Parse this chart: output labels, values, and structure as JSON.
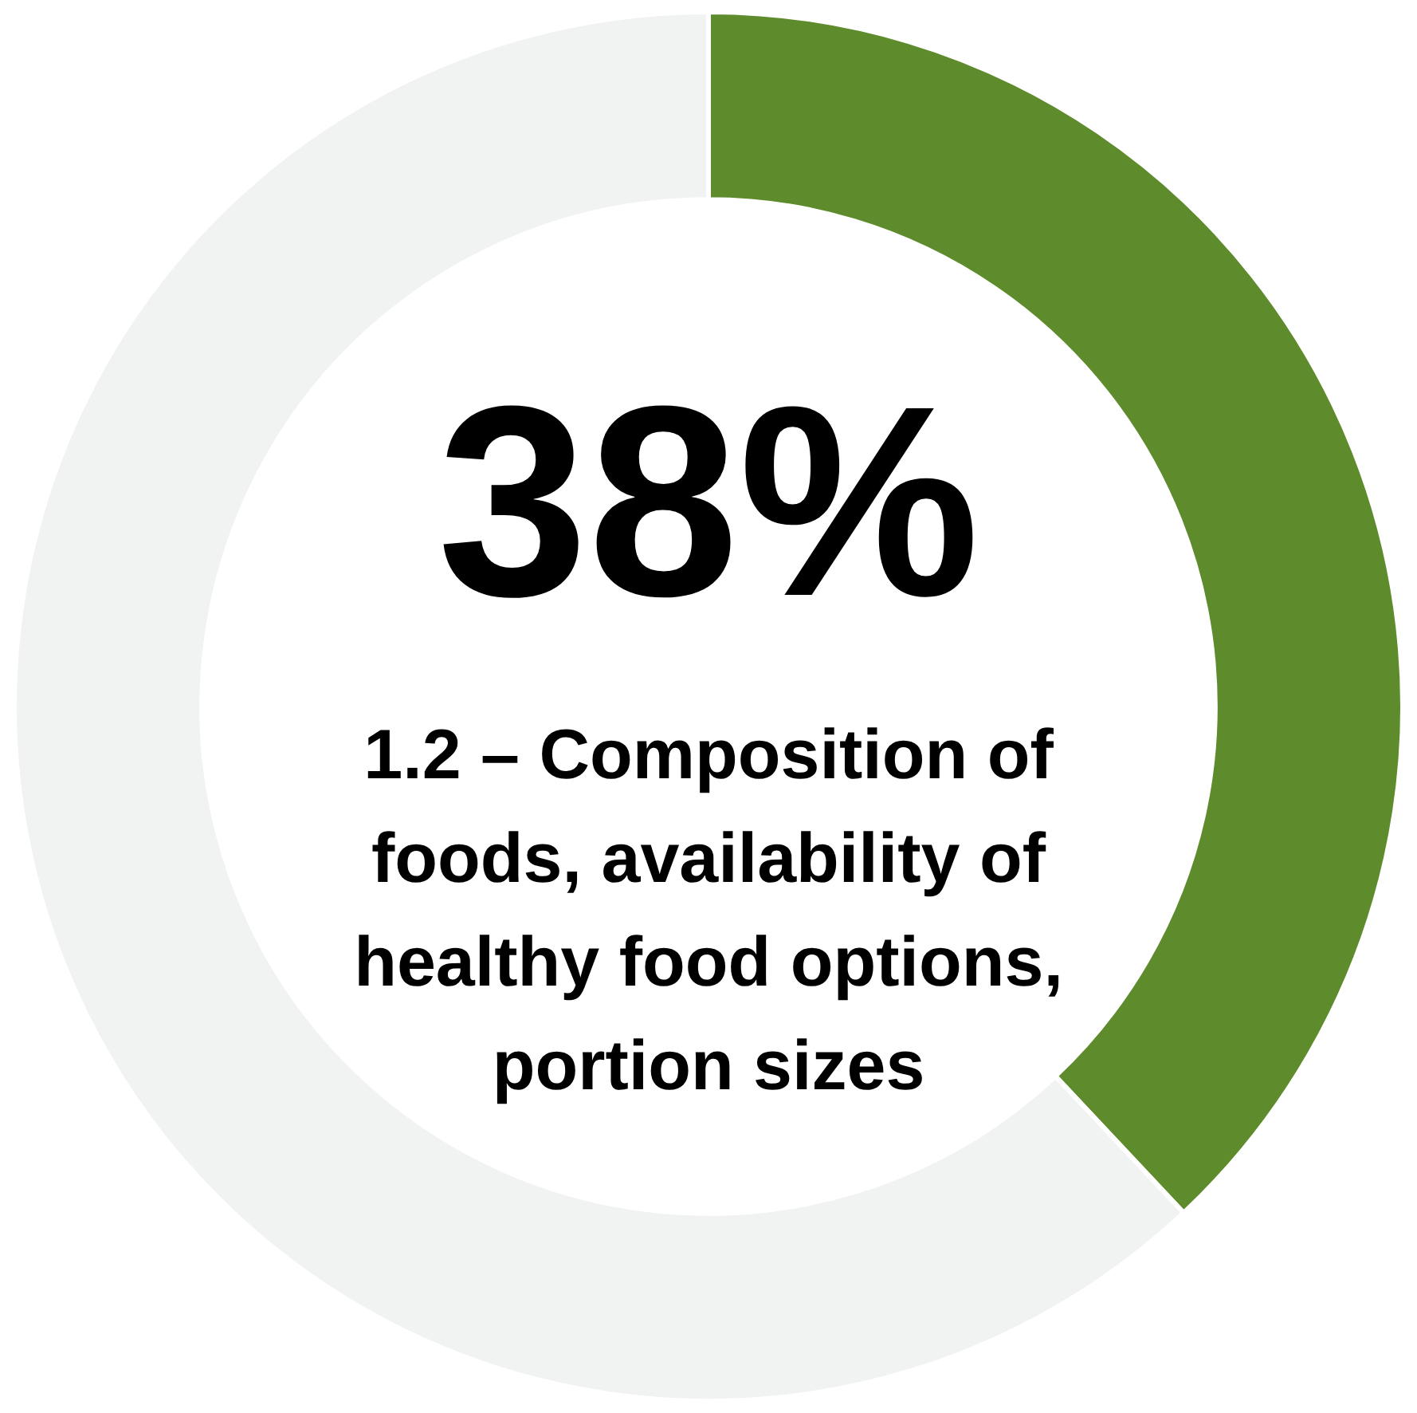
{
  "chart_data": {
    "type": "donut",
    "categories": [
      "1.2 – Composition of foods, availability of healthy food options, portion sizes",
      null
    ],
    "values": [
      38,
      62
    ],
    "colors": [
      "#5e8b2c",
      "#f1f2f2"
    ],
    "value_labels": [
      "38%",
      null
    ],
    "legend": false
  }
}
